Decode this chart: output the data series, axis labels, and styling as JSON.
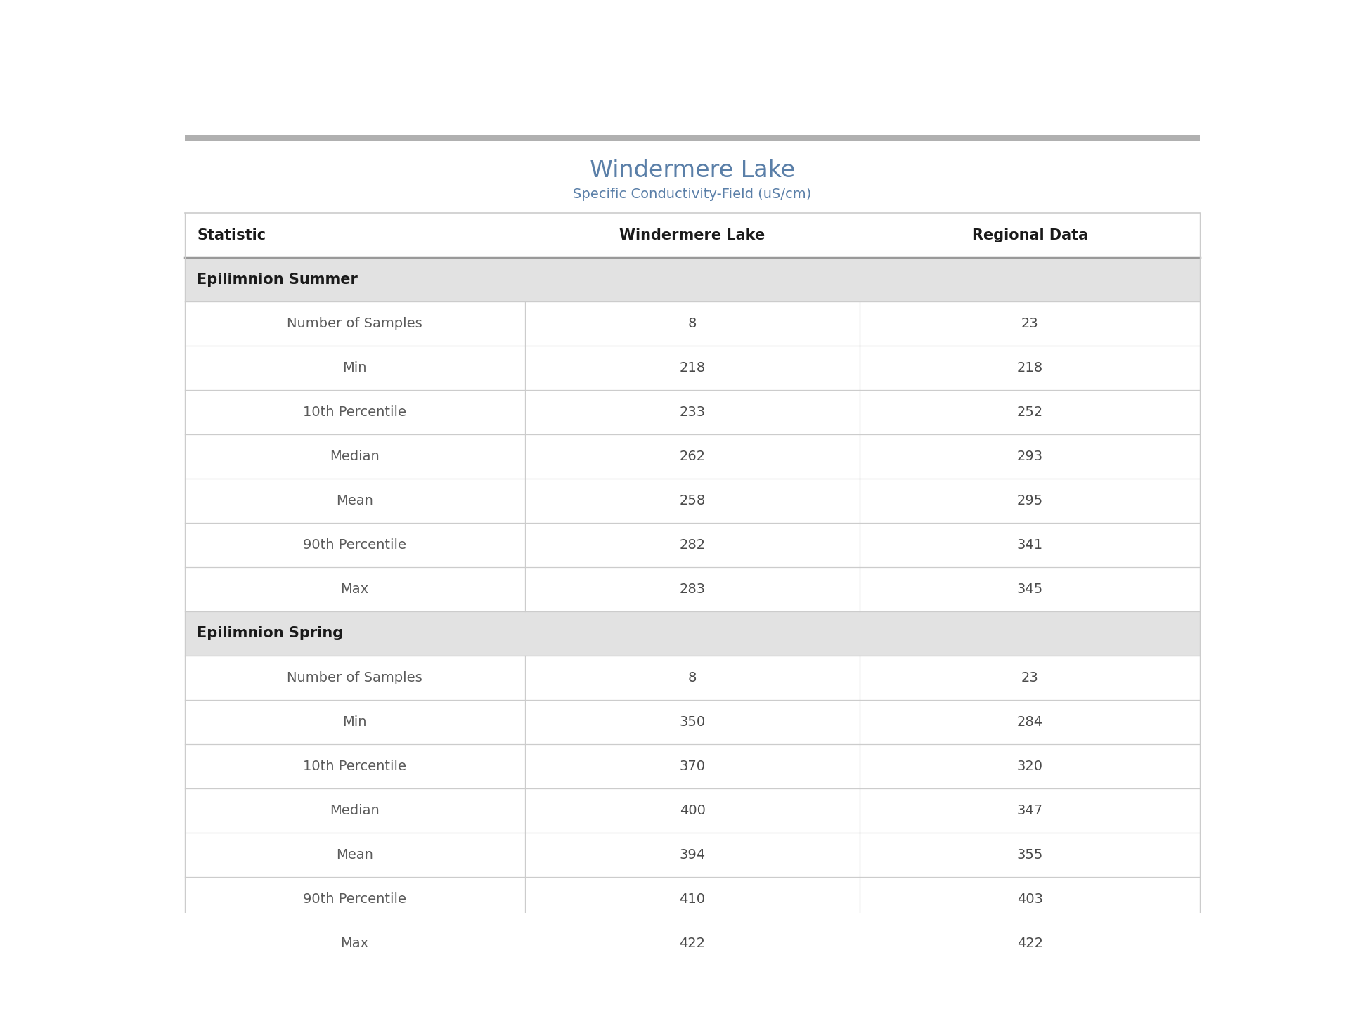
{
  "title": "Windermere Lake",
  "subtitle": "Specific Conductivity-Field (uS/cm)",
  "col_headers": [
    "Statistic",
    "Windermere Lake",
    "Regional Data"
  ],
  "sections": [
    {
      "label": "Epilimnion Summer",
      "rows": [
        [
          "Number of Samples",
          "8",
          "23"
        ],
        [
          "Min",
          "218",
          "218"
        ],
        [
          "10th Percentile",
          "233",
          "252"
        ],
        [
          "Median",
          "262",
          "293"
        ],
        [
          "Mean",
          "258",
          "295"
        ],
        [
          "90th Percentile",
          "282",
          "341"
        ],
        [
          "Max",
          "283",
          "345"
        ]
      ]
    },
    {
      "label": "Epilimnion Spring",
      "rows": [
        [
          "Number of Samples",
          "8",
          "23"
        ],
        [
          "Min",
          "350",
          "284"
        ],
        [
          "10th Percentile",
          "370",
          "320"
        ],
        [
          "Median",
          "400",
          "347"
        ],
        [
          "Mean",
          "394",
          "355"
        ],
        [
          "90th Percentile",
          "410",
          "403"
        ],
        [
          "Max",
          "422",
          "422"
        ]
      ]
    }
  ],
  "title_color": "#5a7fa8",
  "subtitle_color": "#5a7fa8",
  "header_text_color": "#1a1a1a",
  "section_bg_color": "#e2e2e2",
  "section_text_color": "#1a1a1a",
  "row_bg_color": "#ffffff",
  "border_color": "#cccccc",
  "stat_text_color": "#5a5a5a",
  "data_text_color": "#4a4a4a",
  "section_font_size": 15,
  "header_font_size": 15,
  "data_font_size": 14,
  "title_font_size": 24,
  "subtitle_font_size": 14,
  "top_bar_color": "#b0b0b0"
}
